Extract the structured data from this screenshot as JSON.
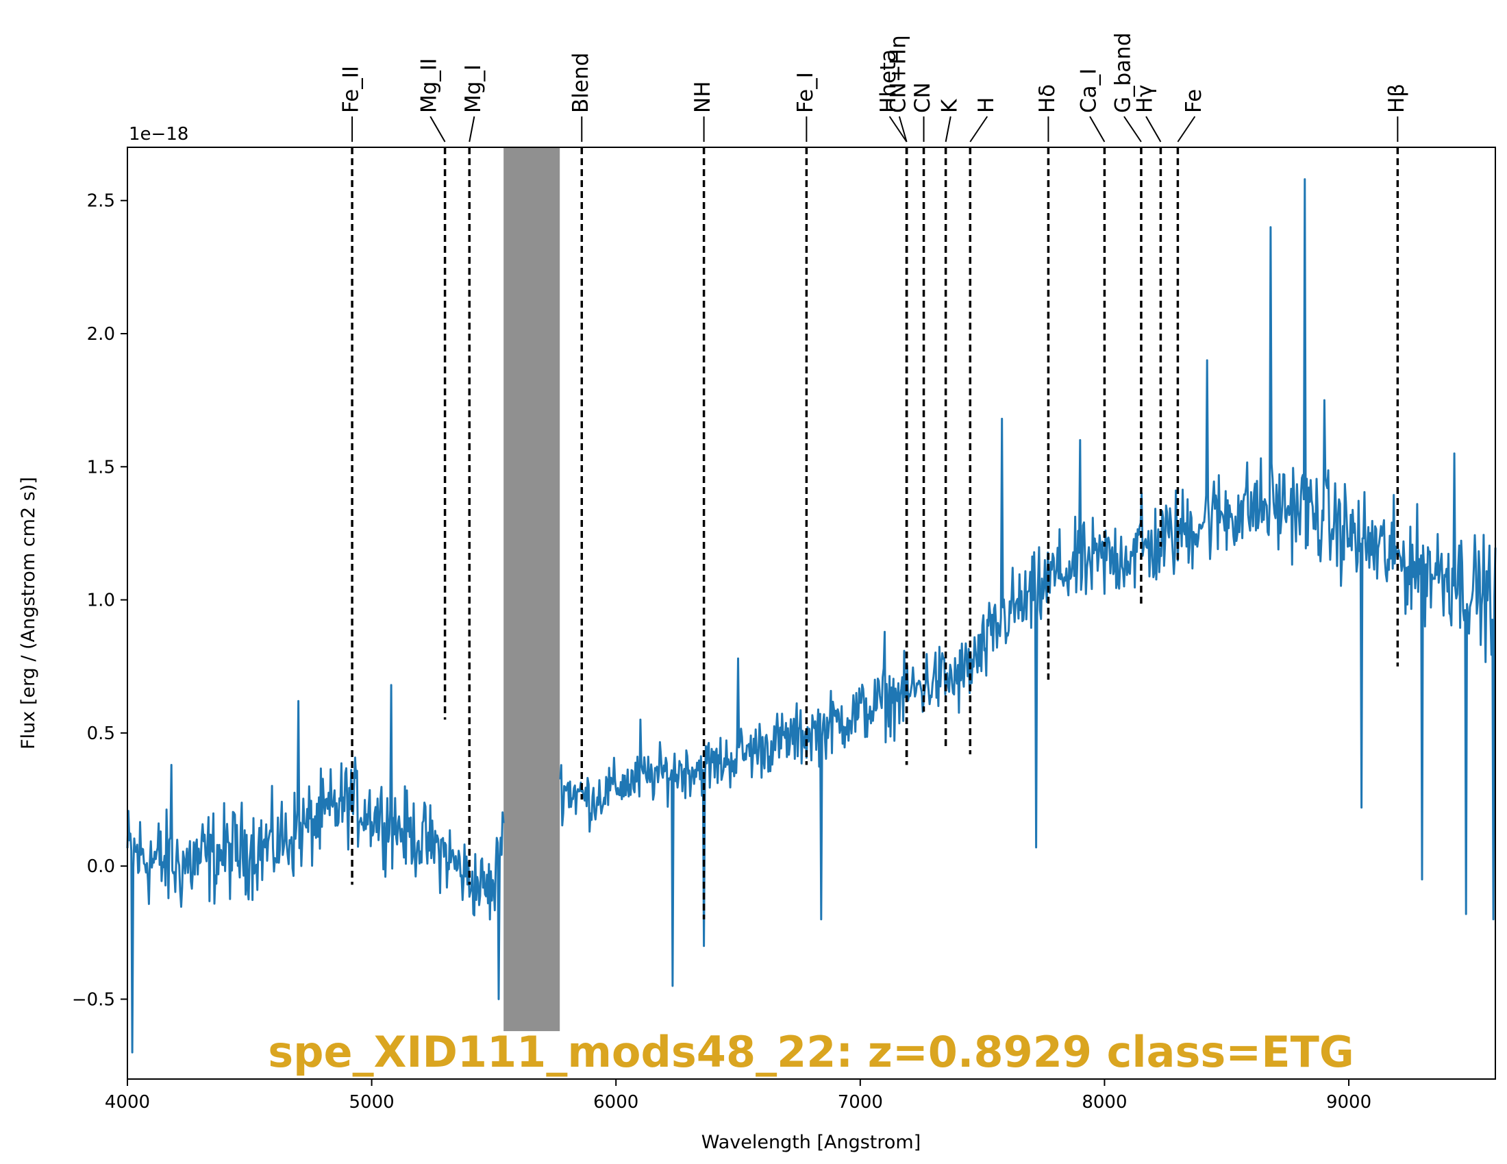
{
  "chart_data": {
    "type": "line",
    "title": "spe_XID111_mods48_22: z=0.8929 class=ETG",
    "title_color": "#DAA520",
    "xlabel": "Wavelength [Angstrom]",
    "ylabel": "Flux [erg / (Angstrom cm2 s)]",
    "y_offset_label": "1e−18",
    "xlim": [
      4000,
      9600
    ],
    "ylim": [
      -0.8,
      2.7
    ],
    "x_ticks": [
      4000,
      5000,
      6000,
      7000,
      8000,
      9000
    ],
    "x_tick_labels": [
      "4000",
      "5000",
      "6000",
      "7000",
      "8000",
      "9000"
    ],
    "y_ticks": [
      -0.5,
      0.0,
      0.5,
      1.0,
      1.5,
      2.0,
      2.5
    ],
    "y_tick_labels": [
      "−0.5",
      "0.0",
      "0.5",
      "1.0",
      "1.5",
      "2.0",
      "2.5"
    ],
    "grid": false,
    "line_color": "#1f77b4",
    "masked_band": {
      "x0": 5540,
      "x1": 5770,
      "y0": -0.62,
      "y1": 2.7,
      "color": "#909090"
    },
    "spectrum": {
      "x_start": 4000,
      "x_end": 9600,
      "x_step": 4,
      "anchors": [
        [
          4000,
          0.05
        ],
        [
          4200,
          0.0
        ],
        [
          4400,
          0.05
        ],
        [
          4600,
          0.08
        ],
        [
          4800,
          0.18
        ],
        [
          4900,
          0.25
        ],
        [
          5000,
          0.2
        ],
        [
          5100,
          0.15
        ],
        [
          5200,
          0.1
        ],
        [
          5300,
          0.05
        ],
        [
          5400,
          -0.05
        ],
        [
          5500,
          -0.1
        ],
        [
          5540,
          0.2
        ],
        [
          5770,
          0.3
        ],
        [
          5900,
          0.25
        ],
        [
          6000,
          0.3
        ],
        [
          6200,
          0.35
        ],
        [
          6400,
          0.38
        ],
        [
          6600,
          0.45
        ],
        [
          6800,
          0.5
        ],
        [
          7000,
          0.58
        ],
        [
          7200,
          0.65
        ],
        [
          7300,
          0.7
        ],
        [
          7400,
          0.7
        ],
        [
          7500,
          0.8
        ],
        [
          7600,
          0.95
        ],
        [
          7700,
          1.0
        ],
        [
          7800,
          1.1
        ],
        [
          8000,
          1.15
        ],
        [
          8200,
          1.2
        ],
        [
          8400,
          1.3
        ],
        [
          8600,
          1.35
        ],
        [
          8800,
          1.35
        ],
        [
          9000,
          1.25
        ],
        [
          9200,
          1.15
        ],
        [
          9400,
          1.1
        ],
        [
          9600,
          1.0
        ]
      ],
      "noise_amp": [
        [
          4000,
          0.28
        ],
        [
          5500,
          0.2
        ],
        [
          6000,
          0.14
        ],
        [
          7000,
          0.18
        ],
        [
          7600,
          0.22
        ],
        [
          8800,
          0.26
        ],
        [
          9600,
          0.3
        ]
      ],
      "spikes": [
        [
          4020,
          -0.7
        ],
        [
          4180,
          0.38
        ],
        [
          4700,
          0.62
        ],
        [
          5080,
          0.68
        ],
        [
          5520,
          -0.5
        ],
        [
          6100,
          0.55
        ],
        [
          6230,
          -0.45
        ],
        [
          6360,
          -0.3
        ],
        [
          6500,
          0.78
        ],
        [
          6840,
          -0.2
        ],
        [
          7100,
          0.88
        ],
        [
          7580,
          1.68
        ],
        [
          7720,
          0.07
        ],
        [
          7900,
          1.6
        ],
        [
          8150,
          1.4
        ],
        [
          8420,
          1.9
        ],
        [
          8680,
          2.4
        ],
        [
          8820,
          2.58
        ],
        [
          8900,
          1.75
        ],
        [
          9050,
          0.22
        ],
        [
          9190,
          1.2
        ],
        [
          9300,
          -0.05
        ],
        [
          9430,
          1.55
        ],
        [
          9480,
          -0.18
        ],
        [
          9590,
          -0.2
        ]
      ]
    },
    "lines": [
      {
        "label": "Fe_II",
        "x": 4920,
        "ylow": -0.07,
        "lx": 4920
      },
      {
        "label": "Mg_II",
        "x": 5300,
        "ylow": 0.55,
        "lx": 5240
      },
      {
        "label": "Mg_I",
        "x": 5400,
        "ylow": -0.07,
        "lx": 5420
      },
      {
        "label": "Blend",
        "x": 5860,
        "ylow": 0.25,
        "lx": 5860
      },
      {
        "label": "NH",
        "x": 6360,
        "ylow": -0.2,
        "lx": 6360
      },
      {
        "label": "Fe_I",
        "x": 6780,
        "ylow": 0.38,
        "lx": 6780
      },
      {
        "label": "CN+Hη",
        "x": 7190,
        "ylow": 0.38,
        "lx": 7160
      },
      {
        "label": "Hheta",
        "x": 7190,
        "ylow": 0.38,
        "lx": 7120
      },
      {
        "label": "CN",
        "x": 7260,
        "ylow": 0.58,
        "lx": 7260
      },
      {
        "label": "K",
        "x": 7350,
        "ylow": 0.45,
        "lx": 7370
      },
      {
        "label": "H",
        "x": 7450,
        "ylow": 0.42,
        "lx": 7520
      },
      {
        "label": "Hδ",
        "x": 7770,
        "ylow": 0.7,
        "lx": 7770
      },
      {
        "label": "Ca_I",
        "x": 8000,
        "ylow": 1.2,
        "lx": 7940
      },
      {
        "label": "G_band",
        "x": 8150,
        "ylow": 0.98,
        "lx": 8080
      },
      {
        "label": "Hγ",
        "x": 8230,
        "ylow": 1.2,
        "lx": 8170
      },
      {
        "label": "Fe",
        "x": 8300,
        "ylow": 1.15,
        "lx": 8370
      },
      {
        "label": "Hβ",
        "x": 9200,
        "ylow": 0.75,
        "lx": 9200
      }
    ]
  }
}
